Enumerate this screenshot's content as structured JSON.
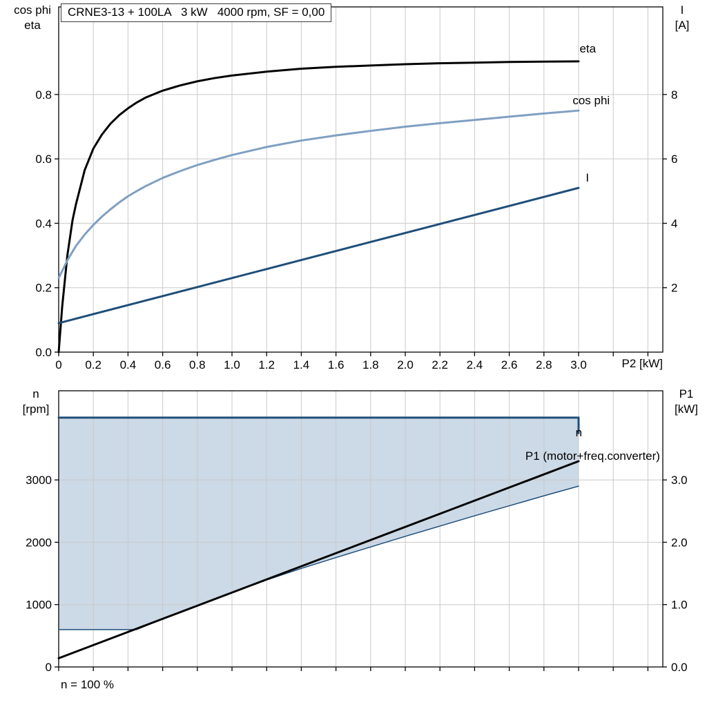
{
  "colors": {
    "background": "#ffffff",
    "grid": "#c9c9c9",
    "axis": "#000000",
    "dark_blue": "#1f4e79",
    "light_blue": "#7f9fc2",
    "fill": "#ccd9e6"
  },
  "chart_data": [
    {
      "type": "line",
      "title": "CRNE3-13 + 100LA   3 kW   4000 rpm, SF = 0,00",
      "x_axis": {
        "label": "P2 [kW]",
        "range": [
          0,
          3.486
        ],
        "ticks": [
          0,
          0.2,
          0.4,
          0.6,
          0.8,
          1.0,
          1.2,
          1.4,
          1.6,
          1.8,
          2.0,
          2.2,
          2.4,
          2.6,
          2.8,
          3.0,
          3.2,
          3.4
        ],
        "tick_labels": [
          "0",
          "0.2",
          "0.4",
          "0.6",
          "0.8",
          "1.0",
          "1.2",
          "1.4",
          "1.6",
          "1.8",
          "2.0",
          "2.2",
          "2.4",
          "2.6",
          "2.8",
          "3.0"
        ],
        "grid": [
          0.2,
          0.4,
          0.6,
          0.8,
          1.0,
          1.2,
          1.4,
          1.6,
          1.8,
          2.0,
          2.2,
          2.4,
          2.6,
          2.8,
          3.0,
          3.2,
          3.4
        ]
      },
      "left_axis": {
        "label_lines": [
          "cos phi",
          "eta"
        ],
        "range": [
          0,
          1.072
        ],
        "ticks": [
          0,
          0.2,
          0.4,
          0.6,
          0.8
        ],
        "tick_labels": [
          "0.0",
          "0.2",
          "0.4",
          "0.6",
          "0.8"
        ],
        "grid": [
          0.2,
          0.4,
          0.6,
          0.8
        ]
      },
      "right_axis": {
        "label_lines": [
          "I",
          "[A]"
        ],
        "ticks": [
          2,
          4,
          6,
          8
        ],
        "tick_labels": [
          "2",
          "4",
          "6",
          "8"
        ],
        "left_per_unit": 0.1
      },
      "series": [
        {
          "name": "eta",
          "axis": "left",
          "color": "#000000",
          "width": 3,
          "points": [
            [
              0,
              0
            ],
            [
              0.02,
              0.14
            ],
            [
              0.05,
              0.3
            ],
            [
              0.08,
              0.41
            ],
            [
              0.1,
              0.46
            ],
            [
              0.15,
              0.565
            ],
            [
              0.2,
              0.632
            ],
            [
              0.25,
              0.676
            ],
            [
              0.3,
              0.71
            ],
            [
              0.35,
              0.736
            ],
            [
              0.4,
              0.757
            ],
            [
              0.45,
              0.775
            ],
            [
              0.5,
              0.79
            ],
            [
              0.6,
              0.812
            ],
            [
              0.7,
              0.828
            ],
            [
              0.8,
              0.841
            ],
            [
              0.9,
              0.851
            ],
            [
              1.0,
              0.859
            ],
            [
              1.2,
              0.871
            ],
            [
              1.4,
              0.88
            ],
            [
              1.6,
              0.886
            ],
            [
              1.8,
              0.89
            ],
            [
              2.0,
              0.894
            ],
            [
              2.2,
              0.897
            ],
            [
              2.4,
              0.899
            ],
            [
              2.6,
              0.901
            ],
            [
              2.8,
              0.902
            ],
            [
              3.0,
              0.903
            ]
          ]
        },
        {
          "name": "cos phi",
          "axis": "left",
          "color": "#7f9fc2",
          "width": 3,
          "points": [
            [
              0,
              0.23
            ],
            [
              0.05,
              0.285
            ],
            [
              0.1,
              0.33
            ],
            [
              0.15,
              0.365
            ],
            [
              0.2,
              0.395
            ],
            [
              0.25,
              0.421
            ],
            [
              0.3,
              0.444
            ],
            [
              0.35,
              0.465
            ],
            [
              0.4,
              0.484
            ],
            [
              0.45,
              0.5
            ],
            [
              0.5,
              0.515
            ],
            [
              0.6,
              0.541
            ],
            [
              0.7,
              0.562
            ],
            [
              0.8,
              0.581
            ],
            [
              0.9,
              0.597
            ],
            [
              1.0,
              0.612
            ],
            [
              1.2,
              0.637
            ],
            [
              1.4,
              0.657
            ],
            [
              1.6,
              0.673
            ],
            [
              1.8,
              0.687
            ],
            [
              2.0,
              0.7
            ],
            [
              2.2,
              0.711
            ],
            [
              2.4,
              0.721
            ],
            [
              2.6,
              0.731
            ],
            [
              2.8,
              0.741
            ],
            [
              3.0,
              0.75
            ]
          ]
        },
        {
          "name": "I",
          "axis": "right",
          "color": "#1f4e79",
          "width": 3,
          "points": [
            [
              0,
              0.9
            ],
            [
              3.0,
              5.1
            ]
          ]
        }
      ],
      "curve_labels": [
        {
          "text": "eta",
          "color": "#000000",
          "x": 3.1,
          "v": 0.93,
          "anchor": "end"
        },
        {
          "text": "cos phi",
          "color": "#7f9fc2",
          "x": 3.18,
          "v": 0.77,
          "anchor": "end"
        },
        {
          "text": "I",
          "color": "#1f4e79",
          "x": 3.06,
          "v": 0.53,
          "anchor": "end"
        }
      ]
    },
    {
      "type": "line-area",
      "x_axis": {
        "label": "",
        "range": [
          0,
          3.486
        ],
        "ticks": [
          0,
          0.2,
          0.4,
          0.6,
          0.8,
          1.0,
          1.2,
          1.4,
          1.6,
          1.8,
          2.0,
          2.2,
          2.4,
          2.6,
          2.8,
          3.0,
          3.2,
          3.4
        ],
        "tick_labels": [],
        "grid": [
          0.2,
          0.4,
          0.6,
          0.8,
          1.0,
          1.2,
          1.4,
          1.6,
          1.8,
          2.0,
          2.2,
          2.4,
          2.6,
          2.8,
          3.0,
          3.2,
          3.4
        ]
      },
      "left_axis": {
        "label_lines": [
          "n",
          "[rpm]"
        ],
        "range": [
          0,
          4430
        ],
        "ticks": [
          0,
          1000,
          2000,
          3000
        ],
        "tick_labels": [
          "0",
          "1000",
          "2000",
          "3000"
        ],
        "grid": [
          1000,
          2000,
          3000
        ]
      },
      "right_axis": {
        "label_lines": [
          "P1",
          "[kW]"
        ],
        "ticks": [
          0,
          1,
          2,
          3
        ],
        "tick_labels": [
          "0.0",
          "1.0",
          "2.0",
          "3.0"
        ],
        "left_per_unit": 1000
      },
      "fill_region": {
        "color": "#ccd9e6",
        "points": [
          [
            0,
            4000
          ],
          [
            3.0,
            4000
          ],
          [
            3.0,
            2900
          ],
          [
            2.8,
            2745
          ],
          [
            2.6,
            2585
          ],
          [
            2.4,
            2425
          ],
          [
            2.2,
            2260
          ],
          [
            2.0,
            2095
          ],
          [
            1.8,
            1925
          ],
          [
            1.6,
            1755
          ],
          [
            1.4,
            1580
          ],
          [
            1.2,
            1395
          ],
          [
            1.0,
            1190
          ],
          [
            0.8,
            980
          ],
          [
            0.6,
            770
          ],
          [
            0.45,
            600
          ],
          [
            0,
            600
          ]
        ]
      },
      "series": [
        {
          "name": "speed range lower boundary",
          "axis": "left",
          "color": "#1f4e79",
          "width": 1.5,
          "points": [
            [
              0,
              600
            ],
            [
              0.45,
              600
            ],
            [
              0.6,
              770
            ],
            [
              0.8,
              980
            ],
            [
              1.0,
              1190
            ],
            [
              1.2,
              1395
            ],
            [
              1.4,
              1580
            ],
            [
              1.6,
              1755
            ],
            [
              1.8,
              1925
            ],
            [
              2.0,
              2095
            ],
            [
              2.2,
              2260
            ],
            [
              2.4,
              2425
            ],
            [
              2.6,
              2585
            ],
            [
              2.8,
              2745
            ],
            [
              3.0,
              2900
            ]
          ]
        },
        {
          "name": "P1 (motor+freq.converter)",
          "axis": "right",
          "color": "#000000",
          "width": 3,
          "points": [
            [
              0,
              0.14
            ],
            [
              3.0,
              3.3
            ]
          ]
        },
        {
          "name": "n",
          "axis": "left",
          "color": "#1f4e79",
          "width": 3,
          "points": [
            [
              0,
              4000
            ],
            [
              3.0,
              4000
            ],
            [
              3.0,
              3750
            ]
          ]
        }
      ],
      "curve_labels": [
        {
          "text": "n",
          "color": "#1f4e79",
          "x": 3.02,
          "v": 3700,
          "anchor": "end"
        },
        {
          "text": "P1 (motor+freq.converter)",
          "color": "#000000",
          "x": 3.47,
          "v": 3320,
          "anchor": "end"
        }
      ],
      "footnote": "n = 100 %"
    }
  ]
}
